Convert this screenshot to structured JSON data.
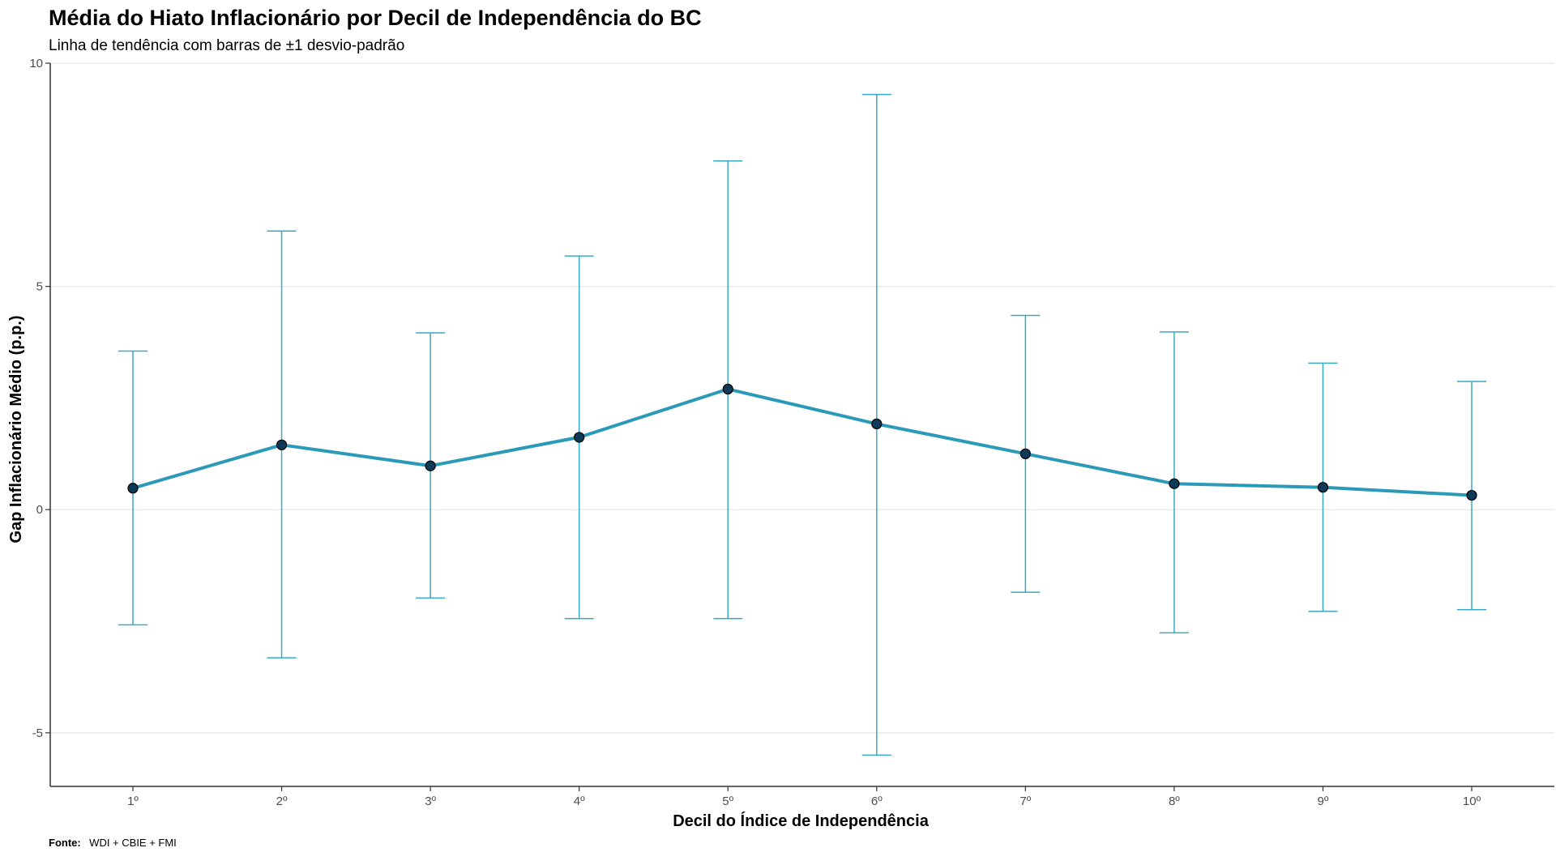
{
  "chart_data": {
    "type": "line",
    "title": "Média do Hiato Inflacionário por Decil de Independência do BC",
    "subtitle": "Linha de tendência com barras de ±1 desvio-padrão",
    "xlabel": "Decil do Índice de Independência",
    "ylabel": "Gap Inflacionário Médio (p.p.)",
    "caption_label": "Fonte:",
    "caption_text": "WDI + CBIE + FMI",
    "categories": [
      "1º",
      "2º",
      "3º",
      "4º",
      "5º",
      "6º",
      "7º",
      "8º",
      "9º",
      "10º"
    ],
    "values": [
      0.48,
      1.45,
      0.98,
      1.62,
      2.7,
      1.92,
      1.25,
      0.58,
      0.5,
      0.32
    ],
    "error_low": [
      -2.58,
      -3.32,
      -1.98,
      -2.44,
      -2.44,
      -5.5,
      -1.85,
      -2.76,
      -2.28,
      -2.24
    ],
    "error_high": [
      3.55,
      6.24,
      3.96,
      5.68,
      7.81,
      9.3,
      4.35,
      3.98,
      3.28,
      2.87
    ],
    "ylim": [
      -6.2,
      10.0
    ],
    "yticks": [
      -5,
      0,
      5,
      10
    ],
    "ytick_labels": [
      "-5",
      "0",
      "5",
      "10"
    ],
    "grid": "horizontal major only",
    "legend": "none",
    "colors": {
      "line": "#2a9ab8",
      "errorbar": "#3aa9c3",
      "point_fill": "#0e3a57",
      "point_stroke": "#000000",
      "grid": "#e6e6e6",
      "axis": "#333333"
    }
  }
}
